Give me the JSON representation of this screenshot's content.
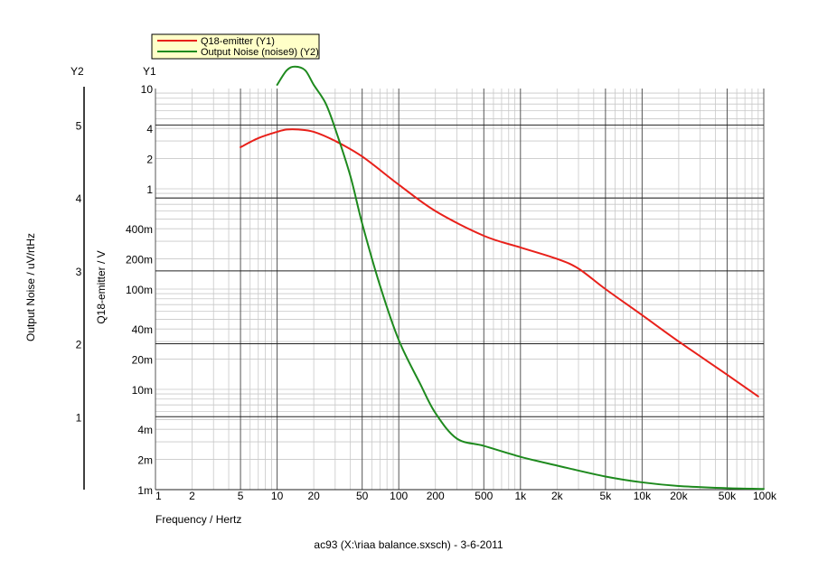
{
  "chart_data": {
    "type": "line",
    "title": "",
    "footer": "ac93 (X:\\riaa balance.sxsch) - 3-6-2011",
    "xlabel": "Frequency / Hertz",
    "x_scale": "log",
    "xlim": [
      1,
      100000
    ],
    "x_tick_labels": [
      {
        "value": 1,
        "label": "1"
      },
      {
        "value": 2,
        "label": "2"
      },
      {
        "value": 5,
        "label": "5"
      },
      {
        "value": 10,
        "label": "10"
      },
      {
        "value": 20,
        "label": "20"
      },
      {
        "value": 50,
        "label": "50"
      },
      {
        "value": 100,
        "label": "100"
      },
      {
        "value": 200,
        "label": "200"
      },
      {
        "value": 500,
        "label": "500"
      },
      {
        "value": 1000,
        "label": "1k"
      },
      {
        "value": 2000,
        "label": "2k"
      },
      {
        "value": 5000,
        "label": "5k"
      },
      {
        "value": 10000,
        "label": "10k"
      },
      {
        "value": 20000,
        "label": "20k"
      },
      {
        "value": 50000,
        "label": "50k"
      },
      {
        "value": 100000,
        "label": "100k"
      }
    ],
    "y1": {
      "header": "Y1",
      "label": "Q18-emitter / V",
      "scale": "log",
      "lim": [
        0.001,
        10
      ],
      "tick_labels": [
        {
          "value": 10,
          "label": "10"
        },
        {
          "value": 4,
          "label": "4"
        },
        {
          "value": 2,
          "label": "2"
        },
        {
          "value": 1,
          "label": "1"
        },
        {
          "value": 0.4,
          "label": "400m"
        },
        {
          "value": 0.2,
          "label": "200m"
        },
        {
          "value": 0.1,
          "label": "100m"
        },
        {
          "value": 0.04,
          "label": "40m"
        },
        {
          "value": 0.02,
          "label": "20m"
        },
        {
          "value": 0.01,
          "label": "10m"
        },
        {
          "value": 0.004,
          "label": "4m"
        },
        {
          "value": 0.002,
          "label": "2m"
        },
        {
          "value": 0.001,
          "label": "1m"
        }
      ]
    },
    "y2": {
      "header": "Y2",
      "label": "Output Noise / uV/rtHz",
      "scale": "linear",
      "lim": [
        0,
        5.5
      ],
      "tick_labels": [
        {
          "value": 1,
          "label": "1"
        },
        {
          "value": 2,
          "label": "2"
        },
        {
          "value": 3,
          "label": "3"
        },
        {
          "value": 4,
          "label": "4"
        },
        {
          "value": 5,
          "label": "5"
        }
      ]
    },
    "grid": true,
    "legend_position": "top-left",
    "series": [
      {
        "name": "Q18-emitter (Y1)",
        "axis": "y1",
        "color": "#e8201a",
        "x": [
          5,
          7,
          10,
          12,
          15,
          20,
          30,
          50,
          100,
          200,
          500,
          1000,
          2000,
          3000,
          5000,
          10000,
          20000,
          50000,
          90000
        ],
        "y": [
          2.6,
          3.2,
          3.7,
          3.9,
          3.9,
          3.7,
          3.0,
          2.1,
          1.1,
          0.6,
          0.34,
          0.26,
          0.2,
          0.16,
          0.1,
          0.055,
          0.03,
          0.014,
          0.0085
        ]
      },
      {
        "name": "Output Noise (noise9) (Y2)",
        "axis": "y2",
        "color": "#1e8a1e",
        "x": [
          10,
          12,
          14,
          17,
          20,
          25,
          30,
          40,
          50,
          70,
          100,
          150,
          200,
          300,
          500,
          1000,
          2000,
          5000,
          10000,
          20000,
          50000,
          100000
        ],
        "y": [
          5.55,
          5.75,
          5.8,
          5.75,
          5.55,
          5.3,
          4.95,
          4.3,
          3.65,
          2.8,
          2.05,
          1.45,
          1.05,
          0.7,
          0.6,
          0.45,
          0.33,
          0.18,
          0.1,
          0.05,
          0.02,
          0.01
        ]
      }
    ]
  }
}
